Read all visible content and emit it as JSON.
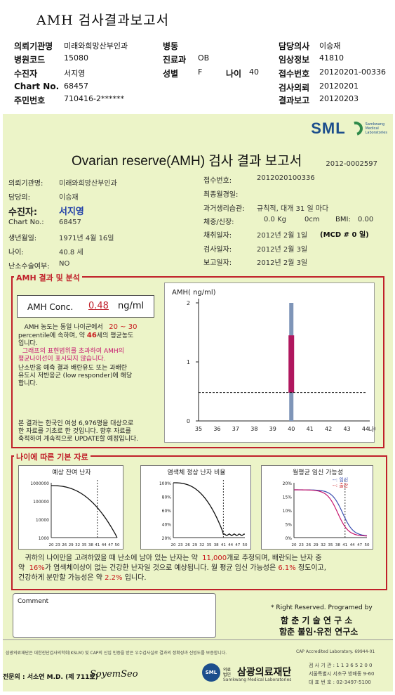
{
  "header": {
    "title": "AMH 검사결과보고서",
    "rows": [
      {
        "l1": "의뢰기관명",
        "v1": "미래와희망산부인과",
        "l2": "병동",
        "v2": "",
        "l4": "담당의사",
        "v4": "이승재"
      },
      {
        "l1": "병원코드",
        "v1": "15080",
        "l2": "진료과",
        "v2": "OB",
        "l4": "임상정보",
        "v4": "41810"
      },
      {
        "l1": "수진자",
        "v1": "서지영",
        "l2": "성별",
        "v2": "F",
        "l3": "나이",
        "v3": "40",
        "l4": "접수번호",
        "v4": "20120201-00336"
      },
      {
        "l1": "Chart No.",
        "v1": "68457",
        "l2": "",
        "v2": "",
        "l4": "검사의뢰",
        "v4": "20120201"
      },
      {
        "l1": "주민번호",
        "v1": "710416-2******",
        "l2": "",
        "v2": "",
        "l4": "결과보고",
        "v4": "20120203"
      }
    ]
  },
  "logo": {
    "text": "SML",
    "sub1": "Samkwang",
    "sub2": "Medical",
    "sub3": "Laboratories"
  },
  "report": {
    "title": "Ovarian reserve(AMH) 검사 결과 보고서",
    "number": "2012-0002597",
    "left": [
      {
        "label": "의뢰기관명:",
        "value": "미래와희망산부인과"
      },
      {
        "label": "담당의:",
        "value": "이승재"
      },
      {
        "label": "수진자:",
        "value": "서지영"
      },
      {
        "label": "Chart No.:",
        "value": "68457"
      },
      {
        "label": "생년월일:",
        "value": "1971년 4월 16일"
      },
      {
        "label": "나이:",
        "value": "40.8 세"
      },
      {
        "label": "난소수술여부:",
        "value": "NO"
      }
    ],
    "right": {
      "receipt_label": "접수번호:",
      "receipt_value": "2012020100336",
      "lmp_label": "최종월경일:",
      "lmp_value": "",
      "hist_label": "과거생리습관:",
      "hist_value": "규칙적, 대개   31 일 마다",
      "body_label": "체중/신장:",
      "weight": "0.0 Kg",
      "height": "0cm",
      "bmi_label": "BMI:",
      "bmi": "0.00",
      "draw_label": "채취일자:",
      "draw_value": "2012년 2월 1일",
      "mcd": "(MCD # 0 일)",
      "test_label": "검사일자:",
      "test_value": "2012년 2월 3일",
      "report_label": "보고일자:",
      "report_value": "2012년 2월 3일"
    }
  },
  "amh": {
    "section_title": "AMH 결과 및 분석",
    "conc_label": "AMH Conc.",
    "conc_value": "0.48",
    "conc_unit": "ng/ml",
    "p1a": "AMH 농도는 동일 나이군에서",
    "pct_range": "20 ~ 30",
    "p1b": "percentile에 속하며,  약",
    "age_equiv": "46",
    "p1c": "세의 평균농도",
    "p1d": "입니다.",
    "p2a": "그래프의 표현범위를 초과하여 AMH의",
    "p2b": "평균나이선이 표시되지 않습니다.",
    "p3a": "난소반응 예측 결과 배란유도 또는 과배란",
    "p3b": "유도시 저반응군 (low responder)에 해당",
    "p3c": "합니다.",
    "p4a": "본 결과는 한국인 여성 6,976명을 대상으로",
    "p4b": "한 자료를 기초로 한 것입니다. 향후 자료를",
    "p4c": "축적하여 계속적으로 UPDATE할 예정입니다."
  },
  "chart_data": [
    {
      "type": "bar",
      "title": "",
      "ylabel": "AMH( ng/ml)",
      "xlabel": "나이",
      "x": [
        35,
        36,
        37,
        38,
        39,
        40,
        41,
        42,
        43,
        44
      ],
      "ylim": [
        0,
        2
      ],
      "yticks": [
        0,
        1,
        2
      ],
      "range_bar": {
        "x": 40,
        "low": 0,
        "high": 2
      },
      "iqr_bar": {
        "x": 40,
        "low": 0.48,
        "high": 1.45
      },
      "patient_value": 0.48
    },
    {
      "type": "line",
      "title": "예상 잔여 난자",
      "x": [
        20,
        23,
        26,
        29,
        32,
        35,
        38,
        41,
        44,
        47,
        50
      ],
      "log_scale": true,
      "yticks": [
        "1000000",
        "100000",
        "10000",
        "1000"
      ],
      "marker_x": 41
    },
    {
      "type": "line",
      "title": "염색체 정상 난자 비율",
      "x": [
        20,
        23,
        26,
        29,
        32,
        35,
        38,
        41,
        44,
        47,
        50
      ],
      "yticks": [
        "100%",
        "80%",
        "60%",
        "40%",
        "20%"
      ],
      "marker_x": 41
    },
    {
      "type": "line",
      "title": "월평균 임신 가능성",
      "legend_a": "--: 임신",
      "legend_b": "--: 출산",
      "x": [
        20,
        23,
        26,
        29,
        32,
        35,
        38,
        41,
        44,
        47,
        50
      ],
      "yticks": [
        "20%",
        "15%",
        "10%",
        "5%",
        "0%"
      ],
      "marker_x": 41
    }
  ],
  "age": {
    "section_title": "나이에 따른 기본 자료",
    "n1a": "귀하의 나이만을 고려하였을 때 난소에 남아 있는 난자는 약",
    "eggs": "11,000",
    "n1b": "개로 추정되며, 배란되는 난자 중",
    "n2a": "약",
    "normal_pct": "16%",
    "n2b": "가 염색체이상이 없는 건강한 난자일 것으로 예상됩니다. 월 평균 임신 가능성은",
    "preg_pct": "6.1%",
    "n2c": "정도이고,",
    "n3a": "건강하게 분만할 가능성은 약",
    "birth_pct": "2.2%",
    "n3b": "입니다."
  },
  "comment_label": "Comment",
  "rights": {
    "line1": "* Right Reserved. Programed by",
    "line2": "함 춘  기 술  연 구 소",
    "line3": "함춘 불임·유전 연구소"
  },
  "footer": {
    "cert": "삼광의료재단은 대한진단검사의학회(KSLM) 및 CAP의 신임 인증을 받은 우수검사실로 결과의 정확성과 신빙도를 보증합니다.",
    "cap": "CAP  Accredited  Laboratory.  69944-01",
    "doctor": "전문의 : 서소연 M.D. (제 711호)",
    "signature": "SoyemSeo",
    "org_prefix": "의료 법인",
    "org_name": "삼광의료재단",
    "org_sub": "Samkwang Medical Laboratories",
    "tel1": "검 사 기 관 : 1 1 3 6 5 2 0 0",
    "tel2": "서울특별시 서초구 방배동 9-60",
    "tel3": "대 표 번 호 : 02-3497-5100"
  }
}
